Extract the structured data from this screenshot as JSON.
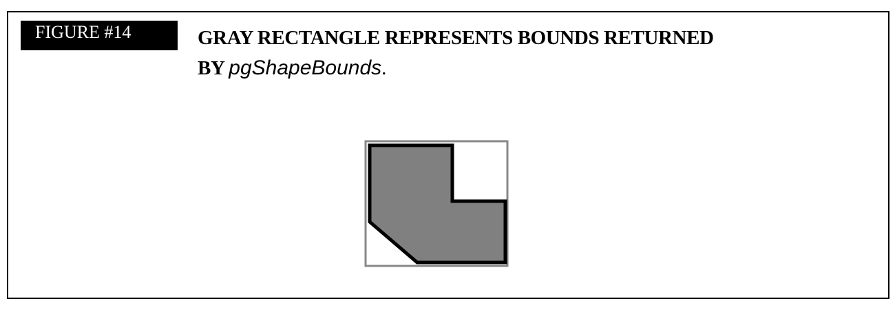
{
  "figure": {
    "label": "FIGURE #14",
    "caption_line1": "GRAY RECTANGLE REPRESENTS BOUNDS RETURNED",
    "caption_line2_prefix": "BY ",
    "caption_function": "pgShapeBounds",
    "caption_period": "."
  },
  "colors": {
    "label_background": "#000000",
    "label_text": "#ffffff",
    "bounds_stroke": "#888888",
    "shape_fill": "#808080",
    "shape_stroke": "#000000",
    "frame_border": "#000000"
  }
}
